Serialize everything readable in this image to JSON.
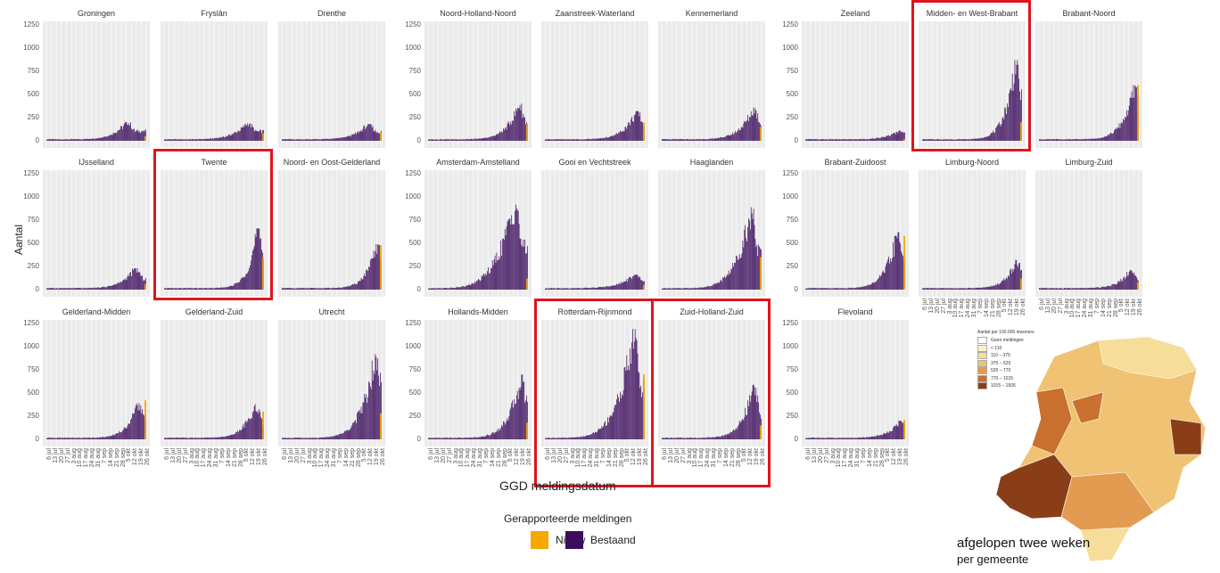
{
  "chart_data": {
    "type": "bar",
    "stacked": true,
    "ylabel": "Aantal",
    "xlabel": "GGD meldingsdatum",
    "ylim": [
      0,
      1250
    ],
    "yticks": [
      0,
      250,
      500,
      750,
      1000,
      1250
    ],
    "xticks": [
      "6 jul",
      "13 jul",
      "20 jul",
      "27 jul",
      "3 aug",
      "10 aug",
      "17 aug",
      "24 aug",
      "31 aug",
      "7 sep",
      "14 sep",
      "21 sep",
      "28 sep",
      "5 okt",
      "12 okt",
      "19 okt",
      "26 okt"
    ],
    "legend": {
      "title": "Gerapporteerde meldingen",
      "items": [
        {
          "name": "Nieuw",
          "color": "#f5a800"
        },
        {
          "name": "Bestaand",
          "color": "#3b0d5c"
        }
      ],
      "position": "bottom"
    },
    "grid": true,
    "series_colors": {
      "Bestaand": "#3b0d5c",
      "Nieuw": "#f5a800"
    },
    "panels": [
      {
        "name": "Groningen",
        "peak": 200,
        "peak_pos": 0.82,
        "sharp": 2.5,
        "nieuw": 50,
        "highlight": false
      },
      {
        "name": "Fryslân",
        "peak": 190,
        "peak_pos": 0.85,
        "sharp": 2.5,
        "nieuw": 80,
        "highlight": false
      },
      {
        "name": "Drenthe",
        "peak": 180,
        "peak_pos": 0.88,
        "sharp": 2.8,
        "nieuw": 90,
        "highlight": false
      },
      {
        "name": "Noord-Holland-Noord",
        "peak": 400,
        "peak_pos": 0.92,
        "sharp": 3.2,
        "nieuw": 180,
        "highlight": false
      },
      {
        "name": "Zaanstreek-Waterland",
        "peak": 320,
        "peak_pos": 0.93,
        "sharp": 3.0,
        "nieuw": 200,
        "highlight": false
      },
      {
        "name": "Kennemerland",
        "peak": 360,
        "peak_pos": 0.93,
        "sharp": 3.0,
        "nieuw": 150,
        "highlight": false
      },
      {
        "name": "Zeeland",
        "peak": 110,
        "peak_pos": 0.96,
        "sharp": 3.5,
        "nieuw": 20,
        "highlight": false
      },
      {
        "name": "Midden- en West-Brabant",
        "peak": 870,
        "peak_pos": 0.94,
        "sharp": 4.0,
        "nieuw": 200,
        "highlight": true
      },
      {
        "name": "Brabant-Noord",
        "peak": 600,
        "peak_pos": 0.97,
        "sharp": 3.5,
        "nieuw": 600,
        "highlight": false
      },
      {
        "name": "IJsselland",
        "peak": 230,
        "peak_pos": 0.9,
        "sharp": 3.0,
        "nieuw": 60,
        "highlight": false
      },
      {
        "name": "Twente",
        "peak": 660,
        "peak_pos": 0.94,
        "sharp": 4.5,
        "nieuw": 350,
        "highlight": true
      },
      {
        "name": "Noord- en Oost-Gelderland",
        "peak": 490,
        "peak_pos": 0.96,
        "sharp": 4.0,
        "nieuw": 480,
        "highlight": false
      },
      {
        "name": "Amsterdam-Amstelland",
        "peak": 980,
        "peak_pos": 0.88,
        "sharp": 2.0,
        "nieuw": 120,
        "highlight": false
      },
      {
        "name": "Gooi en Vechtstreek",
        "peak": 160,
        "peak_pos": 0.92,
        "sharp": 2.5,
        "nieuw": 50,
        "highlight": false
      },
      {
        "name": "Haaglanden",
        "peak": 890,
        "peak_pos": 0.9,
        "sharp": 2.6,
        "nieuw": 350,
        "highlight": false
      },
      {
        "name": "Brabant-Zuidoost",
        "peak": 620,
        "peak_pos": 0.93,
        "sharp": 3.5,
        "nieuw": 580,
        "highlight": false
      },
      {
        "name": "Limburg-Noord",
        "peak": 320,
        "peak_pos": 0.95,
        "sharp": 4.0,
        "nieuw": 120,
        "highlight": false
      },
      {
        "name": "Limburg-Zuid",
        "peak": 210,
        "peak_pos": 0.92,
        "sharp": 3.5,
        "nieuw": 80,
        "highlight": false
      },
      {
        "name": "Gelderland-Midden",
        "peak": 390,
        "peak_pos": 0.93,
        "sharp": 3.5,
        "nieuw": 420,
        "highlight": false
      },
      {
        "name": "Gelderland-Zuid",
        "peak": 380,
        "peak_pos": 0.92,
        "sharp": 3.5,
        "nieuw": 300,
        "highlight": false
      },
      {
        "name": "Utrecht",
        "peak": 1000,
        "peak_pos": 0.95,
        "sharp": 3.0,
        "nieuw": 280,
        "highlight": false
      },
      {
        "name": "Hollands-Midden",
        "peak": 700,
        "peak_pos": 0.94,
        "sharp": 3.2,
        "nieuw": 180,
        "highlight": false
      },
      {
        "name": "Rotterdam-Rijnmond",
        "peak": 1190,
        "peak_pos": 0.9,
        "sharp": 2.3,
        "nieuw": 700,
        "highlight": true
      },
      {
        "name": "Zuid-Holland-Zuid",
        "peak": 590,
        "peak_pos": 0.93,
        "sharp": 3.5,
        "nieuw": 150,
        "highlight": true
      },
      {
        "name": "Flevoland",
        "peak": 200,
        "peak_pos": 0.96,
        "sharp": 3.5,
        "nieuw": 210,
        "highlight": false
      }
    ]
  },
  "map_inset": {
    "legend_title": "Aantal per 100.000 inwoners",
    "legend_items": [
      {
        "label": "Geen meldingen",
        "color": "#ffffff"
      },
      {
        "label": "< 110",
        "color": "#fbf1c8"
      },
      {
        "label": "110 – 375",
        "color": "#f6dd9a"
      },
      {
        "label": "375 – 525",
        "color": "#efc274"
      },
      {
        "label": "525 – 770",
        "color": "#e39b52"
      },
      {
        "label": "770 – 1015",
        "color": "#c9702e"
      },
      {
        "label": "1015 – 1605",
        "color": "#8a3e18"
      }
    ],
    "caption_line1": "afgelopen twee weken",
    "caption_line2": "per gemeente"
  }
}
